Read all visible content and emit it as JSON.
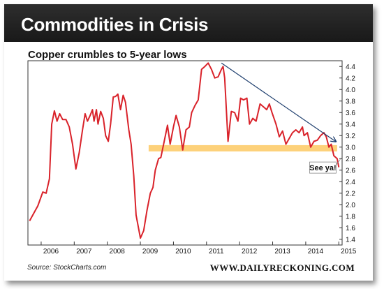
{
  "header": {
    "title": "Commodities in Crisis"
  },
  "footer": {
    "source": "Source: StockCharts.com",
    "site": "WWW.DAILYRECKONING.COM"
  },
  "colors": {
    "line": "#d9222a",
    "band": "#fdd17a",
    "arrow": "#1f3f6e",
    "header_bg": "#222222"
  },
  "chart_data": {
    "type": "line",
    "title": "Copper crumbles to 5-year lows",
    "ylim": [
      1.3,
      4.5
    ],
    "xlim": [
      2005.6,
      2015.1
    ],
    "y_ticks": [
      "1.4",
      "1.6",
      "1.8",
      "2.0",
      "2.2",
      "2.4",
      "2.6",
      "2.8",
      "3.0",
      "3.2",
      "3.4",
      "3.6",
      "3.8",
      "4.0",
      "4.2",
      "4.4"
    ],
    "x_ticks": [
      "2006",
      "2007",
      "2008",
      "2009",
      "2010",
      "2011",
      "2012",
      "2013",
      "2014",
      "2015"
    ],
    "series": [
      {
        "values": [
          [
            2005.65,
            1.72
          ],
          [
            2005.9,
            1.98
          ],
          [
            2006.05,
            2.22
          ],
          [
            2006.15,
            2.2
          ],
          [
            2006.25,
            2.45
          ],
          [
            2006.32,
            3.4
          ],
          [
            2006.4,
            3.63
          ],
          [
            2006.48,
            3.45
          ],
          [
            2006.56,
            3.58
          ],
          [
            2006.65,
            3.48
          ],
          [
            2006.75,
            3.48
          ],
          [
            2006.85,
            3.35
          ],
          [
            2006.95,
            3.05
          ],
          [
            2007.05,
            2.62
          ],
          [
            2007.15,
            2.9
          ],
          [
            2007.25,
            3.3
          ],
          [
            2007.33,
            3.58
          ],
          [
            2007.4,
            3.45
          ],
          [
            2007.48,
            3.55
          ],
          [
            2007.55,
            3.65
          ],
          [
            2007.6,
            3.45
          ],
          [
            2007.67,
            3.65
          ],
          [
            2007.72,
            3.4
          ],
          [
            2007.8,
            3.62
          ],
          [
            2007.88,
            3.5
          ],
          [
            2007.95,
            3.2
          ],
          [
            2008.03,
            3.1
          ],
          [
            2008.1,
            3.4
          ],
          [
            2008.18,
            3.87
          ],
          [
            2008.25,
            3.88
          ],
          [
            2008.32,
            3.92
          ],
          [
            2008.4,
            3.65
          ],
          [
            2008.48,
            3.9
          ],
          [
            2008.55,
            3.78
          ],
          [
            2008.65,
            3.3
          ],
          [
            2008.72,
            3.05
          ],
          [
            2008.8,
            2.5
          ],
          [
            2008.87,
            1.82
          ],
          [
            2009.0,
            1.42
          ],
          [
            2009.1,
            1.55
          ],
          [
            2009.2,
            1.9
          ],
          [
            2009.3,
            2.2
          ],
          [
            2009.38,
            2.3
          ],
          [
            2009.45,
            2.6
          ],
          [
            2009.55,
            2.8
          ],
          [
            2009.62,
            2.82
          ],
          [
            2009.72,
            3.1
          ],
          [
            2009.82,
            3.38
          ],
          [
            2009.9,
            3.05
          ],
          [
            2010.0,
            3.35
          ],
          [
            2010.08,
            3.55
          ],
          [
            2010.18,
            3.35
          ],
          [
            2010.28,
            2.95
          ],
          [
            2010.38,
            3.3
          ],
          [
            2010.48,
            3.35
          ],
          [
            2010.55,
            3.6
          ],
          [
            2010.65,
            3.72
          ],
          [
            2010.75,
            3.82
          ],
          [
            2010.85,
            4.35
          ],
          [
            2010.95,
            4.4
          ],
          [
            2011.05,
            4.46
          ],
          [
            2011.15,
            4.35
          ],
          [
            2011.25,
            4.2
          ],
          [
            2011.35,
            4.22
          ],
          [
            2011.45,
            4.35
          ],
          [
            2011.5,
            4.4
          ],
          [
            2011.55,
            4.2
          ],
          [
            2011.65,
            3.1
          ],
          [
            2011.75,
            3.62
          ],
          [
            2011.85,
            3.6
          ],
          [
            2011.95,
            3.45
          ],
          [
            2012.03,
            3.85
          ],
          [
            2012.12,
            3.82
          ],
          [
            2012.22,
            3.85
          ],
          [
            2012.3,
            3.4
          ],
          [
            2012.4,
            3.5
          ],
          [
            2012.5,
            3.45
          ],
          [
            2012.62,
            3.75
          ],
          [
            2012.72,
            3.7
          ],
          [
            2012.82,
            3.65
          ],
          [
            2012.9,
            3.75
          ],
          [
            2012.98,
            3.6
          ],
          [
            2013.1,
            3.4
          ],
          [
            2013.2,
            3.18
          ],
          [
            2013.3,
            3.28
          ],
          [
            2013.4,
            3.05
          ],
          [
            2013.5,
            3.15
          ],
          [
            2013.6,
            3.25
          ],
          [
            2013.7,
            3.3
          ],
          [
            2013.8,
            3.25
          ],
          [
            2013.9,
            3.35
          ],
          [
            2013.95,
            3.2
          ],
          [
            2014.05,
            3.25
          ],
          [
            2014.15,
            3.0
          ],
          [
            2014.25,
            3.1
          ],
          [
            2014.35,
            3.12
          ],
          [
            2014.45,
            3.2
          ],
          [
            2014.55,
            3.25
          ],
          [
            2014.62,
            3.18
          ],
          [
            2014.7,
            3.0
          ],
          [
            2014.77,
            3.05
          ],
          [
            2014.85,
            2.85
          ],
          [
            2014.95,
            2.8
          ],
          [
            2015.0,
            2.65
          ]
        ]
      }
    ],
    "band": {
      "y": 2.98,
      "x_start": 2009.25,
      "x_end": 2014.95
    },
    "trend_arrow": {
      "from": [
        2011.45,
        4.46
      ],
      "to": [
        2014.9,
        3.1
      ]
    },
    "annotations": [
      {
        "text": "See ya!",
        "x": 2014.75,
        "y": 2.62
      }
    ]
  }
}
